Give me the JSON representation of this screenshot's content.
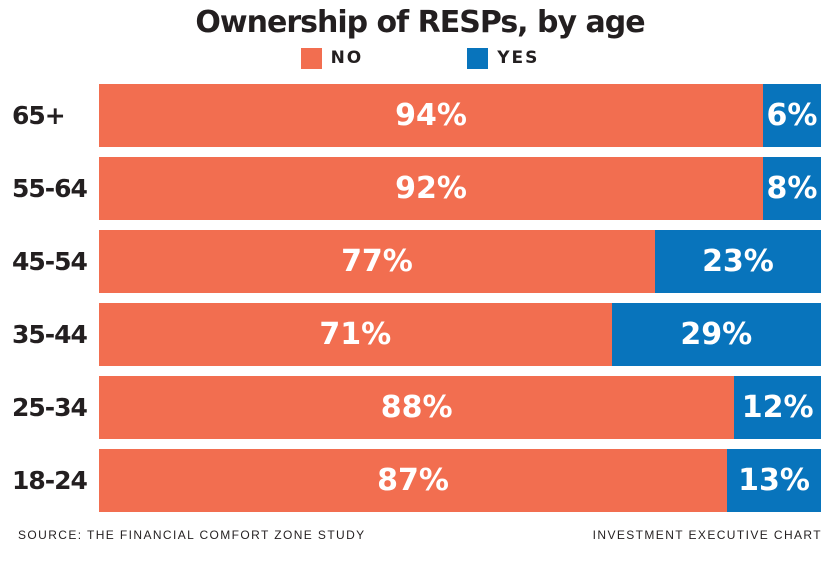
{
  "title": "Ownership of RESPs, by age",
  "legend": {
    "no_label": "NO",
    "yes_label": "YES"
  },
  "colors": {
    "no": "#F26E50",
    "yes": "#0874BC",
    "text": "#231F20",
    "bar_label": "#FFFFFF"
  },
  "footer": {
    "source": "SOURCE: THE FINANCIAL COMFORT ZONE STUDY",
    "credit": "INVESTMENT EXECUTIVE CHART"
  },
  "chart_data": {
    "type": "bar",
    "orientation": "horizontal",
    "stacked": true,
    "title": "Ownership of RESPs, by age",
    "categories": [
      "65+",
      "55-64",
      "45-54",
      "35-44",
      "25-34",
      "18-24"
    ],
    "series": [
      {
        "name": "NO",
        "color": "#F26E50",
        "values": [
          94,
          92,
          77,
          71,
          88,
          87
        ]
      },
      {
        "name": "YES",
        "color": "#0874BC",
        "values": [
          6,
          8,
          23,
          29,
          12,
          13
        ]
      }
    ],
    "value_format": "percent",
    "xlim": [
      0,
      100
    ],
    "grid": false,
    "legend_position": "top",
    "rows": [
      {
        "age": "65+",
        "no_label": "94%",
        "yes_label": "6%"
      },
      {
        "age": "55-64",
        "no_label": "92%",
        "yes_label": "8%"
      },
      {
        "age": "45-54",
        "no_label": "77%",
        "yes_label": "23%"
      },
      {
        "age": "35-44",
        "no_label": "71%",
        "yes_label": "29%"
      },
      {
        "age": "25-34",
        "no_label": "88%",
        "yes_label": "12%"
      },
      {
        "age": "18-24",
        "no_label": "87%",
        "yes_label": "13%"
      }
    ]
  }
}
